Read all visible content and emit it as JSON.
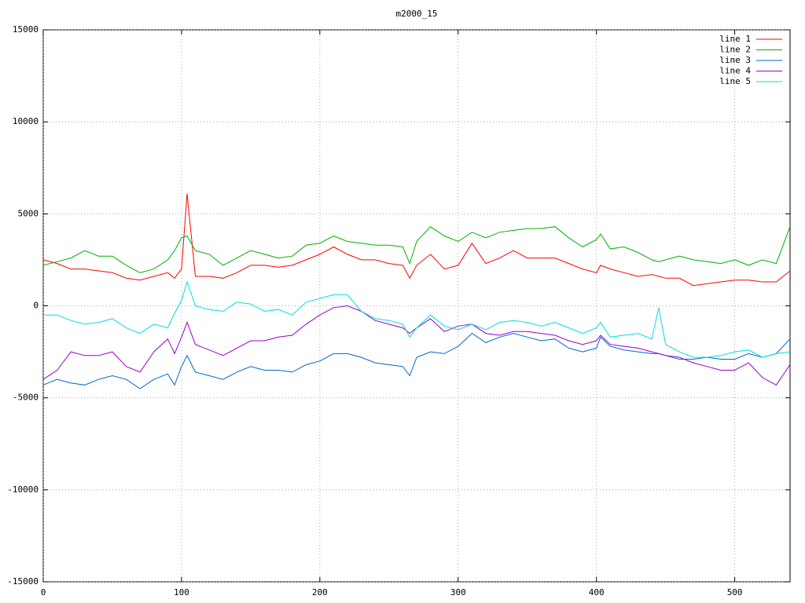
{
  "chart_data": {
    "type": "line",
    "title": "m2000_15",
    "x": [
      0,
      10,
      20,
      30,
      40,
      50,
      60,
      70,
      80,
      90,
      95,
      100,
      104,
      110,
      120,
      130,
      140,
      150,
      160,
      170,
      180,
      190,
      200,
      210,
      220,
      230,
      240,
      250,
      260,
      265,
      270,
      280,
      290,
      300,
      310,
      320,
      330,
      340,
      350,
      360,
      370,
      380,
      390,
      400,
      403,
      410,
      420,
      430,
      440,
      445,
      450,
      460,
      470,
      480,
      490,
      500,
      510,
      520,
      530,
      540
    ],
    "series": [
      {
        "name": "line 1",
        "color": "#ff0000",
        "values": [
          2500,
          2300,
          2000,
          2000,
          1900,
          1800,
          1500,
          1400,
          1600,
          1800,
          1500,
          2000,
          6100,
          1600,
          1600,
          1500,
          1800,
          2200,
          2200,
          2100,
          2200,
          2500,
          2800,
          3200,
          2800,
          2500,
          2500,
          2300,
          2200,
          1500,
          2200,
          2800,
          2000,
          2200,
          3400,
          2300,
          2600,
          3000,
          2600,
          2600,
          2600,
          2300,
          2000,
          1800,
          2200,
          2000,
          1800,
          1600,
          1700,
          1600,
          1500,
          1500,
          1100,
          1200,
          1300,
          1400,
          1400,
          1300,
          1300,
          1900
        ]
      },
      {
        "name": "line 2",
        "color": "#00b000",
        "values": [
          2200,
          2400,
          2600,
          3000,
          2700,
          2700,
          2200,
          1800,
          2000,
          2500,
          3000,
          3700,
          3800,
          3000,
          2800,
          2200,
          2600,
          3000,
          2800,
          2600,
          2700,
          3300,
          3400,
          3800,
          3500,
          3400,
          3300,
          3300,
          3200,
          2300,
          3500,
          4300,
          3800,
          3500,
          4000,
          3700,
          4000,
          4100,
          4200,
          4200,
          4300,
          3700,
          3200,
          3600,
          3900,
          3100,
          3200,
          2900,
          2500,
          2400,
          2500,
          2700,
          2500,
          2400,
          2300,
          2500,
          2200,
          2500,
          2300,
          4300
        ]
      },
      {
        "name": "line 3",
        "color": "#0066cc",
        "values": [
          -4300,
          -4000,
          -4200,
          -4300,
          -4000,
          -3800,
          -4000,
          -4500,
          -4000,
          -3700,
          -4300,
          -3300,
          -2700,
          -3600,
          -3800,
          -4000,
          -3600,
          -3300,
          -3500,
          -3500,
          -3600,
          -3200,
          -3000,
          -2600,
          -2600,
          -2800,
          -3100,
          -3200,
          -3300,
          -3800,
          -2800,
          -2500,
          -2600,
          -2200,
          -1500,
          -2000,
          -1700,
          -1500,
          -1700,
          -1900,
          -1800,
          -2300,
          -2500,
          -2300,
          -1700,
          -2200,
          -2400,
          -2500,
          -2600,
          -2600,
          -2700,
          -2900,
          -2900,
          -2800,
          -2900,
          -2900,
          -2600,
          -2800,
          -2600,
          -1800
        ]
      },
      {
        "name": "line 4",
        "color": "#9900cc",
        "values": [
          -4000,
          -3500,
          -2500,
          -2700,
          -2700,
          -2500,
          -3300,
          -3600,
          -2500,
          -1800,
          -2600,
          -1700,
          -900,
          -2100,
          -2400,
          -2700,
          -2300,
          -1900,
          -1900,
          -1700,
          -1600,
          -1000,
          -500,
          -100,
          0,
          -300,
          -800,
          -1000,
          -1200,
          -1500,
          -1200,
          -700,
          -1400,
          -1100,
          -1000,
          -1500,
          -1600,
          -1400,
          -1400,
          -1500,
          -1600,
          -1900,
          -2100,
          -1900,
          -1600,
          -2100,
          -2200,
          -2300,
          -2500,
          -2600,
          -2700,
          -2800,
          -3100,
          -3300,
          -3500,
          -3500,
          -3100,
          -3900,
          -4300,
          -3200
        ]
      },
      {
        "name": "line 5",
        "color": "#00dddd",
        "values": [
          -500,
          -500,
          -800,
          -1000,
          -900,
          -700,
          -1200,
          -1500,
          -1000,
          -1200,
          -400,
          300,
          1300,
          0,
          -200,
          -300,
          200,
          100,
          -300,
          -200,
          -500,
          200,
          400,
          600,
          600,
          -300,
          -700,
          -800,
          -1000,
          -1700,
          -1200,
          -500,
          -1100,
          -1300,
          -1000,
          -1300,
          -900,
          -800,
          -900,
          -1100,
          -900,
          -1200,
          -1500,
          -1200,
          -900,
          -1700,
          -1600,
          -1500,
          -1800,
          -100,
          -2100,
          -2500,
          -2800,
          -2800,
          -2700,
          -2500,
          -2400,
          -2800,
          -2600,
          -2500
        ]
      }
    ],
    "xlim": [
      0,
      540
    ],
    "xticks": [
      0,
      100,
      200,
      300,
      400,
      500
    ],
    "ylim": [
      -15000,
      15000
    ],
    "yticks": [
      -15000,
      -10000,
      -5000,
      0,
      5000,
      10000,
      15000
    ],
    "grid": true,
    "legend": "top-right"
  }
}
